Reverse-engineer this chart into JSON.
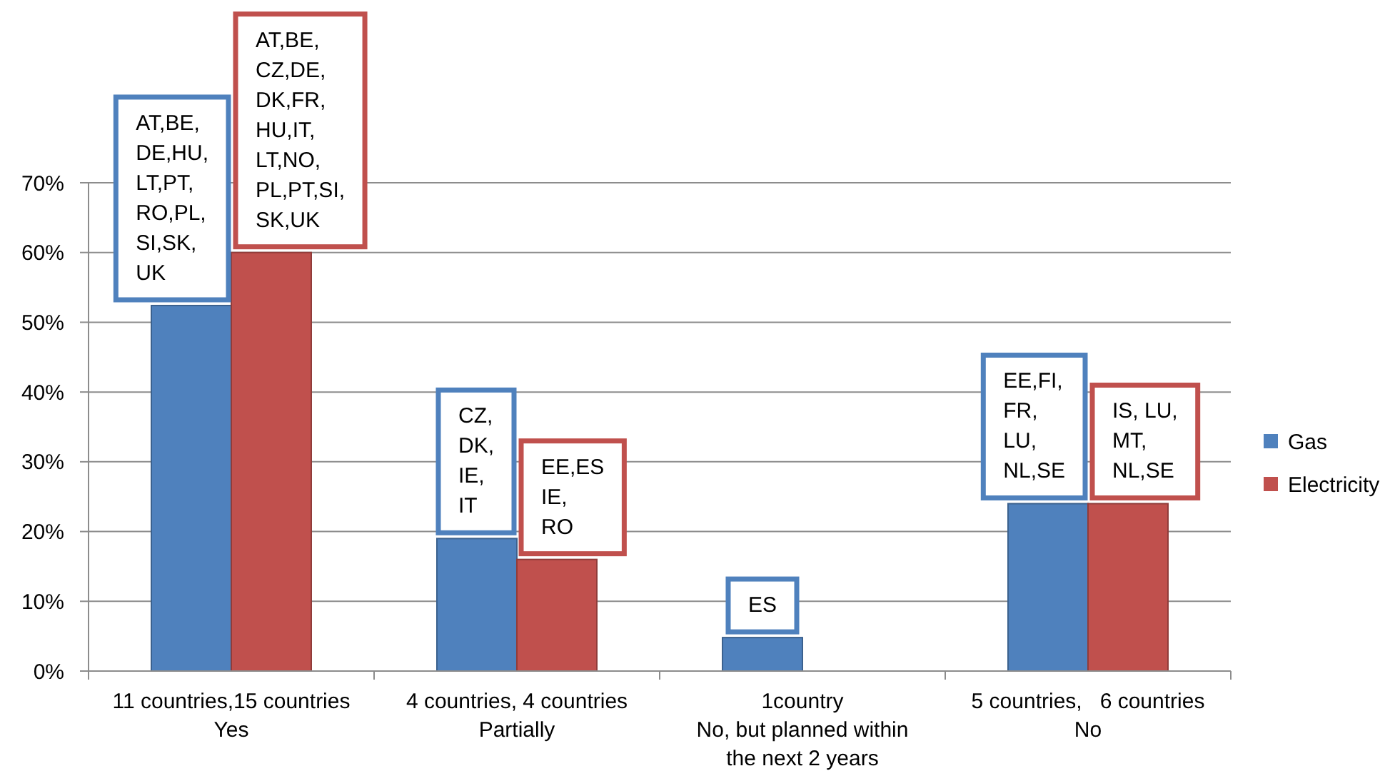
{
  "chart_data": {
    "type": "bar",
    "categories": [
      "11 countries,15 countries\nYes",
      "4 countries, 4 countries\nPartially",
      "1country\nNo, but planned within\nthe next 2 years",
      "5 countries,   6 countries\nNo"
    ],
    "series": [
      {
        "name": "Gas",
        "color": "#4f81bd",
        "values": [
          52.4,
          19,
          4.8,
          24
        ]
      },
      {
        "name": "Electricity",
        "color": "#c0504d",
        "values": [
          60,
          16,
          null,
          24
        ]
      }
    ],
    "ylim": [
      0,
      70
    ],
    "yticks": [
      {
        "value": 0,
        "label": "0%"
      },
      {
        "value": 10,
        "label": "10%"
      },
      {
        "value": 20,
        "label": "20%"
      },
      {
        "value": 30,
        "label": "30%"
      },
      {
        "value": 40,
        "label": "40%"
      },
      {
        "value": 50,
        "label": "50%"
      },
      {
        "value": 60,
        "label": "60%"
      },
      {
        "value": 70,
        "label": "70%"
      }
    ],
    "grid": "y",
    "legend": "right",
    "annotations": [
      {
        "text": "AT,BE,\nDE,HU,\nLT,PT,\nRO,PL,\nSI,SK,\nUK",
        "x": "11 countries,15 countries\nYes",
        "y": 52.4
      },
      {
        "text": "AT,BE,\nCZ,DE,\nDK,FR,\nHU,IT,\nLT,NO,\nPL,PT,SI,\nSK,UK",
        "x": "11 countries,15 countries\nYes",
        "y": 60
      },
      {
        "text": "CZ,\nDK,\nIE,\nIT",
        "x": "4 countries, 4 countries\nPartially",
        "y": 19
      },
      {
        "text": "EE,ES\nIE,\nRO",
        "x": "4 countries, 4 countries\nPartially",
        "y": 16
      },
      {
        "text": "ES",
        "x": "1country\nNo, but planned within\nthe next 2 years",
        "y": 4.8
      },
      {
        "text": "EE,FI,\nFR,\nLU,\nNL,SE",
        "x": "5 countries,   6 countries\nNo",
        "y": 24
      },
      {
        "text": "IS, LU,\nMT,\nNL,SE",
        "x": "5 countries,   6 countries\nNo",
        "y": 24
      }
    ]
  }
}
